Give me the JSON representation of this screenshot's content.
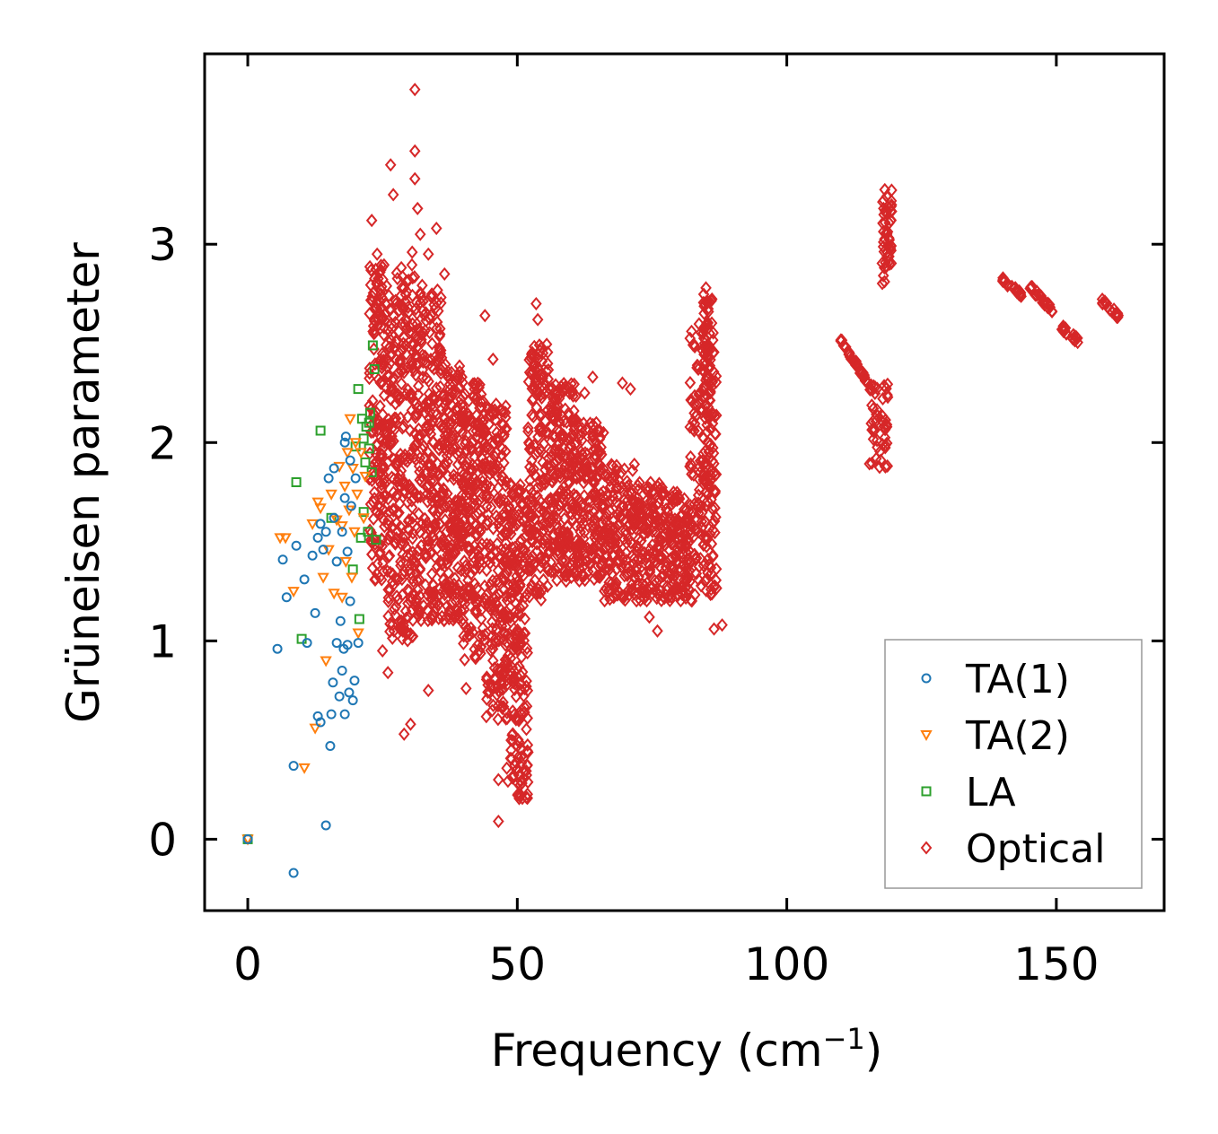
{
  "chart_data": {
    "type": "scatter",
    "title": "",
    "xlabel": "Frequency (cm",
    "xlabel_sup": "−1",
    "xlabel_close": ")",
    "ylabel": "Grüneisen parameter",
    "xlim": [
      -8,
      170
    ],
    "ylim": [
      -0.36,
      3.96
    ],
    "xticks": [
      0,
      50,
      100,
      150
    ],
    "xtick_labels": [
      "0",
      "50",
      "100",
      "150"
    ],
    "yticks": [
      0,
      1,
      2,
      3
    ],
    "ytick_labels": [
      "0",
      "1",
      "2",
      "3"
    ],
    "grid": false,
    "legend_position": "lower-right",
    "series": [
      {
        "name": "TA(1)",
        "marker": "circle",
        "color": "#1f77b4",
        "points": [
          [
            0,
            0
          ],
          [
            5.5,
            0.96
          ],
          [
            6.5,
            1.41
          ],
          [
            7.2,
            1.22
          ],
          [
            8.5,
            0.37
          ],
          [
            8.5,
            -0.17
          ],
          [
            9,
            1.48
          ],
          [
            10.5,
            1.31
          ],
          [
            11,
            0.99
          ],
          [
            12,
            1.43
          ],
          [
            12.5,
            1.14
          ],
          [
            13,
            1.52
          ],
          [
            13,
            0.62
          ],
          [
            13.5,
            1.59
          ],
          [
            13.5,
            0.59
          ],
          [
            14,
            1.46
          ],
          [
            14.5,
            1.55
          ],
          [
            14.5,
            0.07
          ],
          [
            15,
            1.82
          ],
          [
            15.3,
            0.47
          ],
          [
            15.5,
            0.63
          ],
          [
            15.8,
            0.79
          ],
          [
            16,
            1.87
          ],
          [
            16,
            1.62
          ],
          [
            16.5,
            1.4
          ],
          [
            16.5,
            0.99
          ],
          [
            17,
            0.72
          ],
          [
            17.2,
            1.1
          ],
          [
            17.5,
            1.55
          ],
          [
            17.5,
            0.85
          ],
          [
            17.8,
            0.96
          ],
          [
            18,
            2.0
          ],
          [
            18,
            1.72
          ],
          [
            18,
            0.63
          ],
          [
            18.2,
            2.03
          ],
          [
            18.5,
            1.45
          ],
          [
            18.5,
            0.98
          ],
          [
            18.8,
            0.74
          ],
          [
            19,
            1.91
          ],
          [
            19,
            1.2
          ],
          [
            19.2,
            1.68
          ],
          [
            19.5,
            0.7
          ],
          [
            19.8,
            0.8
          ],
          [
            20,
            1.82
          ],
          [
            20.5,
            0.99
          ]
        ]
      },
      {
        "name": "TA(2)",
        "marker": "triangle-down",
        "color": "#ff7f0e",
        "points": [
          [
            0,
            0
          ],
          [
            6,
            1.52
          ],
          [
            7,
            1.52
          ],
          [
            8.5,
            1.25
          ],
          [
            10.5,
            0.36
          ],
          [
            12,
            1.59
          ],
          [
            12.5,
            0.56
          ],
          [
            13,
            1.7
          ],
          [
            13.5,
            1.67
          ],
          [
            14,
            1.32
          ],
          [
            14.5,
            0.9
          ],
          [
            15,
            1.46
          ],
          [
            15.5,
            1.74
          ],
          [
            16,
            1.24
          ],
          [
            16.5,
            1.61
          ],
          [
            17,
            1.88
          ],
          [
            17.5,
            1.58
          ],
          [
            17.5,
            1.22
          ],
          [
            18,
            1.78
          ],
          [
            18.2,
            1.4
          ],
          [
            18.5,
            1.95
          ],
          [
            18.8,
            1.66
          ],
          [
            19,
            2.12
          ],
          [
            19.3,
            1.32
          ],
          [
            19.5,
            1.87
          ],
          [
            19.8,
            1.55
          ],
          [
            20,
            2.0
          ],
          [
            20.3,
            1.74
          ],
          [
            20.5,
            1.04
          ],
          [
            21,
            1.95
          ],
          [
            21.5,
            1.62
          ],
          [
            21.8,
            1.83
          ]
        ]
      },
      {
        "name": "LA",
        "marker": "square",
        "color": "#2ca02c",
        "points": [
          [
            0,
            0
          ],
          [
            9,
            1.8
          ],
          [
            10,
            1.01
          ],
          [
            13.5,
            2.06
          ],
          [
            15.5,
            1.62
          ],
          [
            19.5,
            1.36
          ],
          [
            20,
            1.98
          ],
          [
            20.5,
            2.27
          ],
          [
            20.7,
            1.11
          ],
          [
            21,
            1.52
          ],
          [
            21.2,
            2.12
          ],
          [
            21.5,
            1.65
          ],
          [
            21.8,
            1.9
          ],
          [
            22,
            2.08
          ],
          [
            22.3,
            1.55
          ],
          [
            22.5,
            1.97
          ],
          [
            22.7,
            2.15
          ],
          [
            23,
            1.85
          ],
          [
            23.2,
            2.49
          ],
          [
            23.5,
            2.37
          ],
          [
            23.8,
            1.51
          ],
          [
            22.5,
            2.1
          ],
          [
            21.5,
            2.02
          ]
        ]
      },
      {
        "name": "Optical",
        "marker": "diamond",
        "color": "#d62728",
        "points": [
          [
            23,
            3.12
          ],
          [
            24,
            2.95
          ],
          [
            24.5,
            1.32
          ],
          [
            25,
            0.95
          ],
          [
            26,
            0.84
          ],
          [
            26.5,
            3.4
          ],
          [
            27,
            3.25
          ],
          [
            28.5,
            1.1
          ],
          [
            29,
            0.53
          ],
          [
            30.2,
            0.58
          ],
          [
            30.5,
            2.96
          ],
          [
            31,
            3.78
          ],
          [
            31,
            3.47
          ],
          [
            31,
            3.33
          ],
          [
            31.5,
            3.18
          ],
          [
            32,
            3.05
          ],
          [
            33.5,
            2.95
          ],
          [
            33.5,
            0.75
          ],
          [
            35,
            3.08
          ],
          [
            36.5,
            2.85
          ],
          [
            40.5,
            0.76
          ],
          [
            44,
            2.64
          ],
          [
            45.5,
            2.42
          ],
          [
            46.5,
            0.3
          ],
          [
            46.5,
            0.09
          ],
          [
            47,
            2.16
          ],
          [
            48,
            2.07
          ],
          [
            53.5,
            2.7
          ],
          [
            53.8,
            2.62
          ],
          [
            54.5,
            2.48
          ],
          [
            60,
            1.32
          ],
          [
            62.5,
            2.25
          ],
          [
            64,
            2.33
          ],
          [
            67.5,
            1.29
          ],
          [
            69.5,
            2.3
          ],
          [
            71,
            2.27
          ],
          [
            74.5,
            1.12
          ],
          [
            76,
            1.05
          ],
          [
            82,
            1.88
          ],
          [
            85,
            2.78
          ],
          [
            86.5,
            1.06
          ],
          [
            88,
            1.08
          ]
        ]
      }
    ],
    "optical_clusters": [
      {
        "x": [
          22.5,
          26
        ],
        "y": [
          1.3,
          2.9
        ],
        "n": 180
      },
      {
        "x": [
          26,
          31
        ],
        "y": [
          1.0,
          2.9
        ],
        "n": 260
      },
      {
        "x": [
          31,
          36
        ],
        "y": [
          1.1,
          2.8
        ],
        "n": 260
      },
      {
        "x": [
          36,
          40
        ],
        "y": [
          1.1,
          2.4
        ],
        "n": 200
      },
      {
        "x": [
          40,
          44
        ],
        "y": [
          0.9,
          2.3
        ],
        "n": 200
      },
      {
        "x": [
          44,
          48
        ],
        "y": [
          0.6,
          2.2
        ],
        "n": 200
      },
      {
        "x": [
          48,
          52
        ],
        "y": [
          0.2,
          1.8
        ],
        "n": 220
      },
      {
        "x": [
          52,
          56
        ],
        "y": [
          1.2,
          2.5
        ],
        "n": 180
      },
      {
        "x": [
          56,
          61
        ],
        "y": [
          1.3,
          2.3
        ],
        "n": 220
      },
      {
        "x": [
          61,
          66
        ],
        "y": [
          1.3,
          2.1
        ],
        "n": 180
      },
      {
        "x": [
          66,
          72
        ],
        "y": [
          1.2,
          1.9
        ],
        "n": 160
      },
      {
        "x": [
          72,
          77
        ],
        "y": [
          1.2,
          1.8
        ],
        "n": 140
      },
      {
        "x": [
          77,
          82
        ],
        "y": [
          1.2,
          1.75
        ],
        "n": 140
      },
      {
        "x": [
          82,
          87
        ],
        "y": [
          1.2,
          2.6
        ],
        "n": 180
      },
      {
        "x": [
          84.5,
          86.5
        ],
        "y": [
          1.7,
          2.75
        ],
        "n": 80
      },
      {
        "x": [
          110,
          115
        ],
        "y": [
          2.3,
          2.52
        ],
        "n": 40,
        "line": true
      },
      {
        "x": [
          115,
          119
        ],
        "y": [
          1.85,
          2.3
        ],
        "n": 50
      },
      {
        "x": [
          117.5,
          119.5
        ],
        "y": [
          2.8,
          3.28
        ],
        "n": 50
      },
      {
        "x": [
          140,
          143.5
        ],
        "y": [
          2.75,
          2.82
        ],
        "n": 20,
        "line": true
      },
      {
        "x": [
          145,
          149.5
        ],
        "y": [
          2.66,
          2.79
        ],
        "n": 20,
        "line": true
      },
      {
        "x": [
          151,
          154.5
        ],
        "y": [
          2.5,
          2.58
        ],
        "n": 20,
        "line": true
      },
      {
        "x": [
          158.5,
          161.5
        ],
        "y": [
          2.64,
          2.71
        ],
        "n": 20,
        "line": true
      }
    ]
  }
}
